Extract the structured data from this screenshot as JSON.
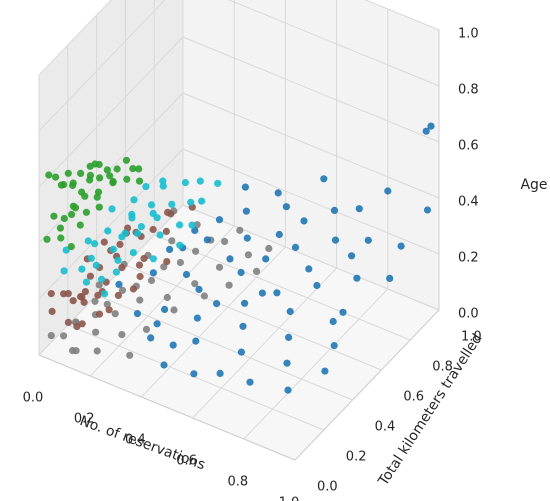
{
  "chart_data": {
    "type": "scatter",
    "projection": "3d",
    "title": "",
    "xlabel": "No. of reservations",
    "ylabel": "Total kilometers travelled",
    "zlabel": "Age",
    "xlim": [
      0,
      1
    ],
    "ylim": [
      0,
      1
    ],
    "zlim": [
      0,
      1
    ],
    "x_ticks": [
      "0.0",
      "0.2",
      "0.4",
      "0.6",
      "0.8",
      "1.0"
    ],
    "y_ticks": [
      "0.0",
      "0.2",
      "0.4",
      "0.6",
      "0.8",
      "1.0"
    ],
    "z_ticks": [
      "0.0",
      "0.2",
      "0.4",
      "0.6",
      "0.8",
      "1.0"
    ],
    "grid": true,
    "legend": "none",
    "colors": {
      "pane_back": "#f3f3f3",
      "pane_side": "#ebebeb",
      "pane_floor": "#f7f7f7",
      "grid": "#d9d9d9",
      "text": "#262626"
    },
    "series": [
      {
        "color": "#2ca02c",
        "points": [
          [
            0.02,
            0.08,
            0.6
          ],
          [
            0.03,
            0.15,
            0.58
          ],
          [
            0.01,
            0.05,
            0.62
          ],
          [
            0.05,
            0.2,
            0.56
          ],
          [
            0.04,
            0.1,
            0.57
          ],
          [
            0.02,
            0.12,
            0.55
          ],
          [
            0.06,
            0.25,
            0.53
          ],
          [
            0.03,
            0.18,
            0.52
          ],
          [
            0.05,
            0.3,
            0.54
          ],
          [
            0.01,
            0.22,
            0.5
          ],
          [
            0.04,
            0.28,
            0.49
          ],
          [
            0.02,
            0.32,
            0.51
          ],
          [
            0.07,
            0.35,
            0.5
          ],
          [
            0.03,
            0.05,
            0.48
          ],
          [
            0.05,
            0.15,
            0.47
          ],
          [
            0.08,
            0.4,
            0.48
          ],
          [
            0.06,
            0.12,
            0.46
          ],
          [
            0.02,
            0.26,
            0.45
          ],
          [
            0.04,
            0.35,
            0.46
          ],
          [
            0.01,
            0.4,
            0.47
          ],
          [
            0.05,
            0.06,
            0.44
          ],
          [
            0.03,
            0.2,
            0.43
          ],
          [
            0.07,
            0.28,
            0.44
          ],
          [
            0.02,
            0.14,
            0.42
          ],
          [
            0.04,
            0.42,
            0.43
          ],
          [
            0.06,
            0.5,
            0.45
          ],
          [
            0.09,
            0.45,
            0.42
          ],
          [
            0.01,
            0.3,
            0.41
          ],
          [
            0.03,
            0.36,
            0.4
          ],
          [
            0.05,
            0.24,
            0.4
          ],
          [
            0.02,
            0.02,
            0.41
          ],
          [
            0.08,
            0.55,
            0.4
          ],
          [
            0.04,
            0.08,
            0.39
          ],
          [
            0.06,
            0.18,
            0.39
          ],
          [
            0.03,
            0.46,
            0.38
          ],
          [
            0.1,
            0.52,
            0.38
          ],
          [
            0.05,
            0.33,
            0.37
          ],
          [
            0.02,
            0.48,
            0.37
          ],
          [
            0.07,
            0.1,
            0.36
          ],
          [
            0.04,
            0.58,
            0.37
          ]
        ]
      },
      {
        "color": "#17becf",
        "points": [
          [
            0.05,
            0.1,
            0.34
          ],
          [
            0.08,
            0.2,
            0.33
          ],
          [
            0.1,
            0.3,
            0.32
          ],
          [
            0.06,
            0.4,
            0.33
          ],
          [
            0.12,
            0.15,
            0.31
          ],
          [
            0.09,
            0.5,
            0.32
          ],
          [
            0.14,
            0.35,
            0.3
          ],
          [
            0.07,
            0.05,
            0.3
          ],
          [
            0.11,
            0.45,
            0.29
          ],
          [
            0.15,
            0.25,
            0.3
          ],
          [
            0.08,
            0.6,
            0.31
          ],
          [
            0.13,
            0.55,
            0.29
          ],
          [
            0.16,
            0.4,
            0.28
          ],
          [
            0.1,
            0.12,
            0.28
          ],
          [
            0.18,
            0.5,
            0.29
          ],
          [
            0.12,
            0.65,
            0.3
          ],
          [
            0.06,
            0.28,
            0.27
          ],
          [
            0.2,
            0.3,
            0.28
          ],
          [
            0.14,
            0.08,
            0.27
          ],
          [
            0.09,
            0.7,
            0.28
          ],
          [
            0.17,
            0.62,
            0.27
          ],
          [
            0.22,
            0.45,
            0.27
          ],
          [
            0.11,
            0.38,
            0.26
          ],
          [
            0.19,
            0.2,
            0.26
          ],
          [
            0.15,
            0.75,
            0.27
          ],
          [
            0.24,
            0.55,
            0.26
          ],
          [
            0.13,
            0.48,
            0.25
          ],
          [
            0.21,
            0.68,
            0.26
          ],
          [
            0.07,
            0.52,
            0.25
          ],
          [
            0.16,
            0.15,
            0.25
          ],
          [
            0.25,
            0.35,
            0.25
          ],
          [
            0.18,
            0.8,
            0.26
          ],
          [
            0.1,
            0.22,
            0.24
          ],
          [
            0.23,
            0.72,
            0.25
          ],
          [
            0.26,
            0.6,
            0.24
          ],
          [
            0.12,
            0.58,
            0.24
          ],
          [
            0.2,
            0.1,
            0.24
          ],
          [
            0.28,
            0.48,
            0.24
          ],
          [
            0.14,
            0.3,
            0.23
          ],
          [
            0.22,
            0.85,
            0.24
          ]
        ]
      },
      {
        "color": "#1f77b4",
        "points": [
          [
            0.2,
            0.2,
            0.22
          ],
          [
            0.25,
            0.35,
            0.2
          ],
          [
            0.3,
            0.15,
            0.18
          ],
          [
            0.28,
            0.5,
            0.22
          ],
          [
            0.35,
            0.25,
            0.16
          ],
          [
            0.32,
            0.6,
            0.21
          ],
          [
            0.4,
            0.4,
            0.17
          ],
          [
            0.38,
            0.1,
            0.15
          ],
          [
            0.42,
            0.7,
            0.2
          ],
          [
            0.45,
            0.3,
            0.14
          ],
          [
            0.48,
            0.55,
            0.18
          ],
          [
            0.36,
            0.8,
            0.22
          ],
          [
            0.5,
            0.2,
            0.13
          ],
          [
            0.52,
            0.65,
            0.19
          ],
          [
            0.55,
            0.45,
            0.15
          ],
          [
            0.44,
            0.15,
            0.12
          ],
          [
            0.58,
            0.75,
            0.2
          ],
          [
            0.6,
            0.35,
            0.14
          ],
          [
            0.62,
            0.55,
            0.16
          ],
          [
            0.3,
            0.9,
            0.23
          ],
          [
            0.65,
            0.25,
            0.12
          ],
          [
            0.68,
            0.85,
            0.21
          ],
          [
            0.7,
            0.5,
            0.15
          ],
          [
            0.46,
            0.05,
            0.11
          ],
          [
            0.72,
            0.65,
            0.17
          ],
          [
            0.75,
            0.4,
            0.13
          ],
          [
            0.4,
            0.95,
            0.22
          ],
          [
            0.78,
            0.9,
            0.22
          ],
          [
            0.8,
            0.3,
            0.11
          ],
          [
            0.56,
            0.08,
            0.1
          ],
          [
            0.34,
            0.42,
            0.19
          ],
          [
            0.26,
            0.62,
            0.21
          ],
          [
            0.54,
            0.88,
            0.21
          ],
          [
            0.64,
            0.12,
            0.11
          ],
          [
            0.48,
            0.38,
            0.16
          ],
          [
            0.82,
            0.75,
            0.18
          ],
          [
            0.85,
            0.6,
            0.15
          ],
          [
            0.88,
            0.95,
            0.21
          ],
          [
            0.9,
            0.45,
            0.13
          ],
          [
            0.92,
            0.8,
            0.19
          ],
          [
            0.74,
            0.15,
            0.1
          ],
          [
            0.95,
            1.0,
            0.62
          ],
          [
            0.98,
            0.98,
            0.66
          ],
          [
            1.0,
            0.92,
            0.4
          ],
          [
            0.86,
            0.2,
            0.09
          ],
          [
            0.66,
            0.7,
            0.18
          ],
          [
            0.58,
            0.52,
            0.16
          ],
          [
            0.42,
            0.58,
            0.19
          ],
          [
            0.76,
            0.82,
            0.2
          ],
          [
            0.62,
            0.95,
            0.24
          ],
          [
            0.36,
            0.18,
            0.15
          ],
          [
            0.5,
            0.78,
            0.2
          ],
          [
            0.7,
            0.98,
            0.26
          ],
          [
            0.8,
            1.0,
            0.35
          ],
          [
            0.55,
            1.0,
            0.3
          ],
          [
            0.92,
            0.35,
            0.1
          ],
          [
            0.84,
            0.55,
            0.14
          ],
          [
            0.3,
            0.72,
            0.21
          ],
          [
            0.24,
            0.48,
            0.21
          ],
          [
            0.46,
            0.9,
            0.22
          ]
        ]
      },
      {
        "color": "#8c564b",
        "points": [
          [
            0.02,
            0.05,
            0.2
          ],
          [
            0.04,
            0.1,
            0.18
          ],
          [
            0.03,
            0.15,
            0.15
          ],
          [
            0.05,
            0.2,
            0.12
          ],
          [
            0.06,
            0.25,
            0.17
          ],
          [
            0.02,
            0.3,
            0.19
          ],
          [
            0.07,
            0.08,
            0.1
          ],
          [
            0.04,
            0.35,
            0.14
          ],
          [
            0.08,
            0.18,
            0.16
          ],
          [
            0.03,
            0.4,
            0.2
          ],
          [
            0.09,
            0.28,
            0.11
          ],
          [
            0.05,
            0.45,
            0.13
          ],
          [
            0.1,
            0.12,
            0.18
          ],
          [
            0.06,
            0.5,
            0.19
          ],
          [
            0.11,
            0.38,
            0.15
          ],
          [
            0.01,
            0.22,
            0.08
          ],
          [
            0.12,
            0.05,
            0.12
          ],
          [
            0.07,
            0.55,
            0.17
          ],
          [
            0.13,
            0.32,
            0.09
          ],
          [
            0.04,
            0.02,
            0.16
          ],
          [
            0.14,
            0.48,
            0.14
          ],
          [
            0.08,
            0.42,
            0.2
          ],
          [
            0.15,
            0.22,
            0.1
          ],
          [
            0.02,
            0.58,
            0.15
          ],
          [
            0.16,
            0.6,
            0.18
          ],
          [
            0.09,
            0.14,
            0.07
          ],
          [
            0.17,
            0.4,
            0.13
          ],
          [
            0.05,
            0.62,
            0.11
          ],
          [
            0.18,
            0.1,
            0.16
          ],
          [
            0.1,
            0.52,
            0.08
          ],
          [
            0.03,
            0.26,
            0.06
          ],
          [
            0.12,
            0.68,
            0.19
          ],
          [
            0.06,
            0.36,
            0.09
          ],
          [
            0.19,
            0.55,
            0.11
          ],
          [
            0.08,
            0.65,
            0.13
          ],
          [
            0.14,
            0.16,
            0.18
          ],
          [
            0.2,
            0.3,
            0.15
          ],
          [
            0.11,
            0.72,
            0.16
          ],
          [
            0.01,
            0.48,
            0.12
          ],
          [
            0.16,
            0.78,
            0.17
          ]
        ]
      },
      {
        "color": "#7f7f7f",
        "points": [
          [
            0.02,
            0.05,
            0.05
          ],
          [
            0.04,
            0.1,
            0.03
          ],
          [
            0.06,
            0.15,
            0.06
          ],
          [
            0.03,
            0.2,
            0.02
          ],
          [
            0.08,
            0.25,
            0.04
          ],
          [
            0.1,
            0.08,
            0.01
          ],
          [
            0.05,
            0.3,
            0.05
          ],
          [
            0.12,
            0.18,
            0.03
          ],
          [
            0.07,
            0.35,
            0.02
          ],
          [
            0.14,
            0.28,
            0.05
          ],
          [
            0.09,
            0.42,
            0.04
          ],
          [
            0.16,
            0.12,
            0.01
          ],
          [
            0.11,
            0.48,
            0.03
          ],
          [
            0.18,
            0.38,
            0.06
          ],
          [
            0.01,
            0.4,
            0.04
          ],
          [
            0.13,
            0.55,
            0.02
          ],
          [
            0.2,
            0.22,
            0.03
          ],
          [
            0.15,
            0.6,
            0.05
          ],
          [
            0.22,
            0.5,
            0.02
          ],
          [
            0.04,
            0.52,
            0.06
          ],
          [
            0.17,
            0.68,
            0.03
          ],
          [
            0.24,
            0.32,
            0.01
          ],
          [
            0.19,
            0.75,
            0.04
          ],
          [
            0.26,
            0.62,
            0.02
          ],
          [
            0.06,
            0.65,
            0.03
          ],
          [
            0.21,
            0.82,
            0.05
          ],
          [
            0.28,
            0.44,
            0.03
          ],
          [
            0.23,
            0.88,
            0.02
          ],
          [
            0.3,
            0.72,
            0.04
          ],
          [
            0.08,
            0.78,
            0.02
          ],
          [
            0.25,
            0.95,
            0.03
          ],
          [
            0.32,
            0.58,
            0.02
          ],
          [
            0.02,
            0.9,
            0.04
          ],
          [
            0.34,
            0.85,
            0.03
          ],
          [
            0.1,
            0.92,
            0.01
          ],
          [
            0.36,
            0.68,
            0.02
          ],
          [
            0.27,
            0.15,
            0.02
          ],
          [
            0.38,
            0.92,
            0.03
          ],
          [
            0.12,
            0.02,
            0.05
          ],
          [
            0.4,
            0.8,
            0.02
          ]
        ]
      }
    ]
  }
}
